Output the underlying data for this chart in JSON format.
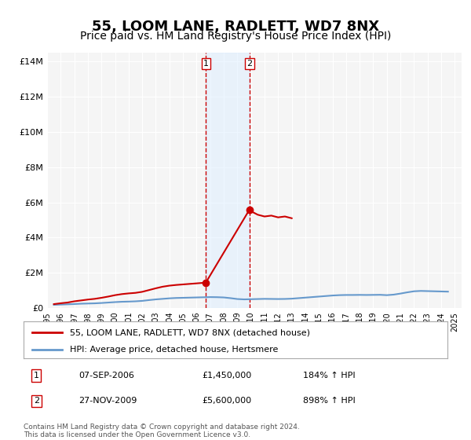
{
  "title": "55, LOOM LANE, RADLETT, WD7 8NX",
  "subtitle": "Price paid vs. HM Land Registry's House Price Index (HPI)",
  "title_fontsize": 13,
  "subtitle_fontsize": 10,
  "background_color": "#ffffff",
  "plot_bg_color": "#f5f5f5",
  "grid_color": "#ffffff",
  "ylabel_ticks": [
    "£0",
    "£2M",
    "£4M",
    "£6M",
    "£8M",
    "£10M",
    "£12M",
    "£14M"
  ],
  "ytick_values": [
    0,
    2000000,
    4000000,
    6000000,
    8000000,
    10000000,
    12000000,
    14000000
  ],
  "ylim": [
    0,
    14500000
  ],
  "xlim_start": 1995.0,
  "xlim_end": 2025.5,
  "transaction1_x": 2006.685,
  "transaction1_y": 1450000,
  "transaction1_label": "07-SEP-2006",
  "transaction1_price": "£1,450,000",
  "transaction1_pct": "184% ↑ HPI",
  "transaction2_x": 2009.9,
  "transaction2_y": 5600000,
  "transaction2_label": "27-NOV-2009",
  "transaction2_price": "£5,600,000",
  "transaction2_pct": "898% ↑ HPI",
  "shade_x1": 2006.685,
  "shade_x2": 2009.9,
  "line1_color": "#cc0000",
  "line2_color": "#6699cc",
  "dot_color": "#cc0000",
  "shade_color": "#ddeeff",
  "shade_alpha": 0.5,
  "legend_line1": "55, LOOM LANE, RADLETT, WD7 8NX (detached house)",
  "legend_line2": "HPI: Average price, detached house, Hertsmere",
  "footer1": "Contains HM Land Registry data © Crown copyright and database right 2024.",
  "footer2": "This data is licensed under the Open Government Licence v3.0.",
  "hpi_data": {
    "years": [
      1995.5,
      1996.0,
      1996.5,
      1997.0,
      1997.5,
      1998.0,
      1998.5,
      1999.0,
      1999.5,
      2000.0,
      2000.5,
      2001.0,
      2001.5,
      2002.0,
      2002.5,
      2003.0,
      2003.5,
      2004.0,
      2004.5,
      2005.0,
      2005.5,
      2006.0,
      2006.5,
      2007.0,
      2007.5,
      2008.0,
      2008.5,
      2009.0,
      2009.5,
      2010.0,
      2010.5,
      2011.0,
      2011.5,
      2012.0,
      2012.5,
      2013.0,
      2013.5,
      2014.0,
      2014.5,
      2015.0,
      2015.5,
      2016.0,
      2016.5,
      2017.0,
      2017.5,
      2018.0,
      2018.5,
      2019.0,
      2019.5,
      2020.0,
      2020.5,
      2021.0,
      2021.5,
      2022.0,
      2022.5,
      2023.0,
      2023.5,
      2024.0,
      2024.5
    ],
    "values": [
      180000,
      195000,
      210000,
      225000,
      245000,
      255000,
      265000,
      285000,
      310000,
      335000,
      355000,
      365000,
      380000,
      405000,
      450000,
      490000,
      520000,
      550000,
      570000,
      580000,
      590000,
      600000,
      610000,
      620000,
      615000,
      600000,
      560000,
      510000,
      490000,
      500000,
      510000,
      520000,
      515000,
      510000,
      515000,
      530000,
      560000,
      590000,
      620000,
      650000,
      680000,
      710000,
      730000,
      740000,
      740000,
      745000,
      740000,
      745000,
      750000,
      730000,
      760000,
      820000,
      890000,
      950000,
      970000,
      960000,
      950000,
      940000,
      930000
    ]
  },
  "price_data": {
    "years": [
      1995.5,
      1996.0,
      1996.5,
      1997.0,
      1997.5,
      1998.0,
      1998.5,
      1999.0,
      1999.5,
      2000.0,
      2000.5,
      2001.0,
      2001.5,
      2002.0,
      2002.5,
      2003.0,
      2003.5,
      2004.0,
      2004.5,
      2005.0,
      2005.5,
      2006.0,
      2006.5,
      2006.685,
      2009.9,
      2010.0,
      2010.5,
      2011.0,
      2011.5,
      2012.0,
      2012.5,
      2013.0
    ],
    "values": [
      220000,
      270000,
      310000,
      380000,
      430000,
      480000,
      520000,
      580000,
      650000,
      730000,
      790000,
      830000,
      860000,
      920000,
      1020000,
      1120000,
      1210000,
      1270000,
      1310000,
      1340000,
      1370000,
      1400000,
      1430000,
      1450000,
      5600000,
      5500000,
      5300000,
      5200000,
      5250000,
      5150000,
      5200000,
      5100000
    ]
  }
}
